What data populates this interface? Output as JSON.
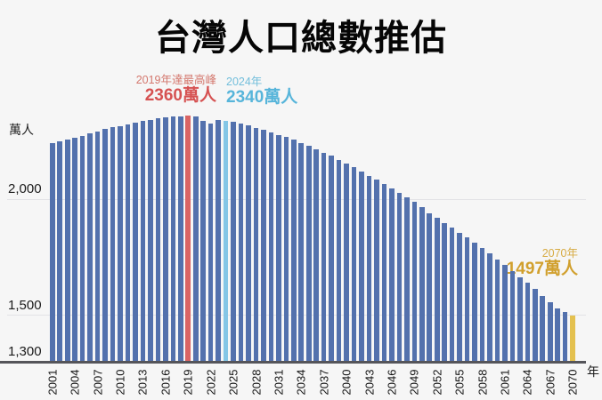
{
  "title": "台灣人口總數推估",
  "y_axis": {
    "unit": "萬人",
    "ticks": [
      {
        "label": "2,000",
        "value": 2000
      },
      {
        "label": "1,500",
        "value": 1500
      },
      {
        "label": "1,300",
        "value": 1300
      }
    ]
  },
  "x_axis": {
    "unit": "年",
    "tick_step": 3
  },
  "annotations": {
    "peak": {
      "line1": "2019年達最高峰",
      "line2": "2360萬人",
      "color1": "#d4786e",
      "color2": "#d65252"
    },
    "current": {
      "line1": "2024年",
      "line2": "2340萬人",
      "color1": "#72bedb",
      "color2": "#57b5da"
    },
    "final": {
      "line1": "2070年",
      "line2": "1497萬人",
      "color1": "#d7ab43",
      "color2": "#d1a02e"
    }
  },
  "colors": {
    "background": "#f6f6f6",
    "bar": "#5371ad",
    "bar_peak": "#d96464",
    "bar_current": "#84c6e6",
    "bar_final": "#e4c150",
    "gridline": "#e3e3e6",
    "axis": "#55555a"
  },
  "chart_data": {
    "type": "bar",
    "title": "台灣人口總數推估",
    "ylabel": "萬人",
    "xlabel": "年",
    "ybase": 1300,
    "ylim": [
      1300,
      2400
    ],
    "gridlines": [
      1500,
      2000
    ],
    "legend": false,
    "highlight_years": {
      "2019": "bar_peak",
      "2024": "bar_current",
      "2070": "bar_final"
    },
    "x": [
      2001,
      2002,
      2003,
      2004,
      2005,
      2006,
      2007,
      2008,
      2009,
      2010,
      2011,
      2012,
      2013,
      2014,
      2015,
      2016,
      2017,
      2018,
      2019,
      2020,
      2021,
      2022,
      2023,
      2024,
      2025,
      2026,
      2027,
      2028,
      2029,
      2030,
      2031,
      2032,
      2033,
      2034,
      2035,
      2036,
      2037,
      2038,
      2039,
      2040,
      2041,
      2042,
      2043,
      2044,
      2045,
      2046,
      2047,
      2048,
      2049,
      2050,
      2051,
      2052,
      2053,
      2054,
      2055,
      2056,
      2057,
      2058,
      2059,
      2060,
      2061,
      2062,
      2063,
      2064,
      2065,
      2066,
      2067,
      2068,
      2069,
      2070
    ],
    "values": [
      2241,
      2250,
      2258,
      2266,
      2274,
      2285,
      2294,
      2303,
      2311,
      2316,
      2323,
      2331,
      2337,
      2343,
      2349,
      2354,
      2357,
      2359,
      2360,
      2356,
      2339,
      2326,
      2342,
      2340,
      2333,
      2326,
      2318,
      2309,
      2299,
      2289,
      2279,
      2268,
      2256,
      2243,
      2230,
      2216,
      2202,
      2187,
      2171,
      2155,
      2138,
      2120,
      2102,
      2084,
      2066,
      2047,
      2028,
      2008,
      1988,
      1964,
      1940,
      1920,
      1897,
      1876,
      1855,
      1834,
      1812,
      1789,
      1764,
      1739,
      1714,
      1689,
      1663,
      1637,
      1610,
      1582,
      1554,
      1526,
      1511,
      1497
    ]
  }
}
